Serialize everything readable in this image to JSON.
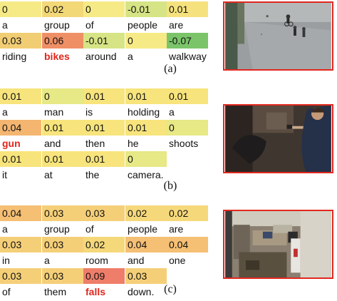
{
  "panels": [
    {
      "caption": "(a)",
      "image_desc_name": "bikes-scene",
      "rows": [
        {
          "cells": [
            {
              "score": "0",
              "word": "a",
              "color": "#f6ea86"
            },
            {
              "score": "0.02",
              "word": "group",
              "color": "#f3d878"
            },
            {
              "score": "0",
              "word": "of",
              "color": "#f6ea86"
            },
            {
              "score": "-0.01",
              "word": "people",
              "color": "#d6e485"
            },
            {
              "score": "0.01",
              "word": "are",
              "color": "#f5e27e"
            }
          ]
        },
        {
          "cells": [
            {
              "score": "0.03",
              "word": "riding",
              "color": "#f1cd74"
            },
            {
              "score": "0.06",
              "word": "bikes",
              "color": "#ef8f66",
              "highlight": true
            },
            {
              "score": "-0.01",
              "word": "around",
              "color": "#d6e485"
            },
            {
              "score": "0",
              "word": "a",
              "color": "#f6ea86"
            },
            {
              "score": "-0.07",
              "word": "walkway",
              "color": "#7bc46a"
            }
          ]
        }
      ]
    },
    {
      "caption": "(b)",
      "image_desc_name": "gun-scene",
      "rows": [
        {
          "cells": [
            {
              "score": "0.01",
              "word": "a",
              "color": "#f7e47c"
            },
            {
              "score": "0",
              "word": "man",
              "color": "#e7e886"
            },
            {
              "score": "0.01",
              "word": "is",
              "color": "#f7e47c"
            },
            {
              "score": "0.01",
              "word": "holding",
              "color": "#f7e47c"
            },
            {
              "score": "0.01",
              "word": "a",
              "color": "#f7e47c"
            }
          ]
        },
        {
          "cells": [
            {
              "score": "0.04",
              "word": "gun",
              "color": "#f4b571",
              "highlight": true
            },
            {
              "score": "0.01",
              "word": "and",
              "color": "#f7e47c"
            },
            {
              "score": "0.01",
              "word": "then",
              "color": "#f7e47c"
            },
            {
              "score": "0.01",
              "word": "he",
              "color": "#f7e47c"
            },
            {
              "score": "0",
              "word": "shoots",
              "color": "#e7e886"
            }
          ]
        },
        {
          "cells": [
            {
              "score": "0.01",
              "word": "it",
              "color": "#f7e47c"
            },
            {
              "score": "0.01",
              "word": "at",
              "color": "#f7e47c"
            },
            {
              "score": "0.01",
              "word": "the",
              "color": "#f7e47c"
            },
            {
              "score": "0",
              "word": "camera.",
              "color": "#e7e886"
            }
          ]
        }
      ]
    },
    {
      "caption": "(c)",
      "image_desc_name": "office-fall-scene",
      "rows": [
        {
          "cells": [
            {
              "score": "0.04",
              "word": "a",
              "color": "#f5bf74"
            },
            {
              "score": "0.03",
              "word": "group",
              "color": "#f5cf78"
            },
            {
              "score": "0.03",
              "word": "of",
              "color": "#f5cf78"
            },
            {
              "score": "0.02",
              "word": "people",
              "color": "#f5d87a"
            },
            {
              "score": "0.02",
              "word": "are",
              "color": "#f5d87a"
            }
          ]
        },
        {
          "cells": [
            {
              "score": "0.03",
              "word": "in",
              "color": "#f5cf78"
            },
            {
              "score": "0.03",
              "word": "a",
              "color": "#f5cf78"
            },
            {
              "score": "0.02",
              "word": "room",
              "color": "#f5d87a"
            },
            {
              "score": "0.04",
              "word": "and",
              "color": "#f5bf74"
            },
            {
              "score": "0.04",
              "word": "one",
              "color": "#f5bf74"
            }
          ]
        },
        {
          "cells": [
            {
              "score": "0.03",
              "word": "of",
              "color": "#f5cf78"
            },
            {
              "score": "0.03",
              "word": "them",
              "color": "#f5cf78"
            },
            {
              "score": "0.09",
              "word": "falls",
              "color": "#ee7d69",
              "highlight": true
            },
            {
              "score": "0.03",
              "word": "down.",
              "color": "#f5cf78"
            }
          ]
        }
      ]
    }
  ],
  "highlight_color": "#e1251b",
  "frame_border_color": "#e2281f"
}
